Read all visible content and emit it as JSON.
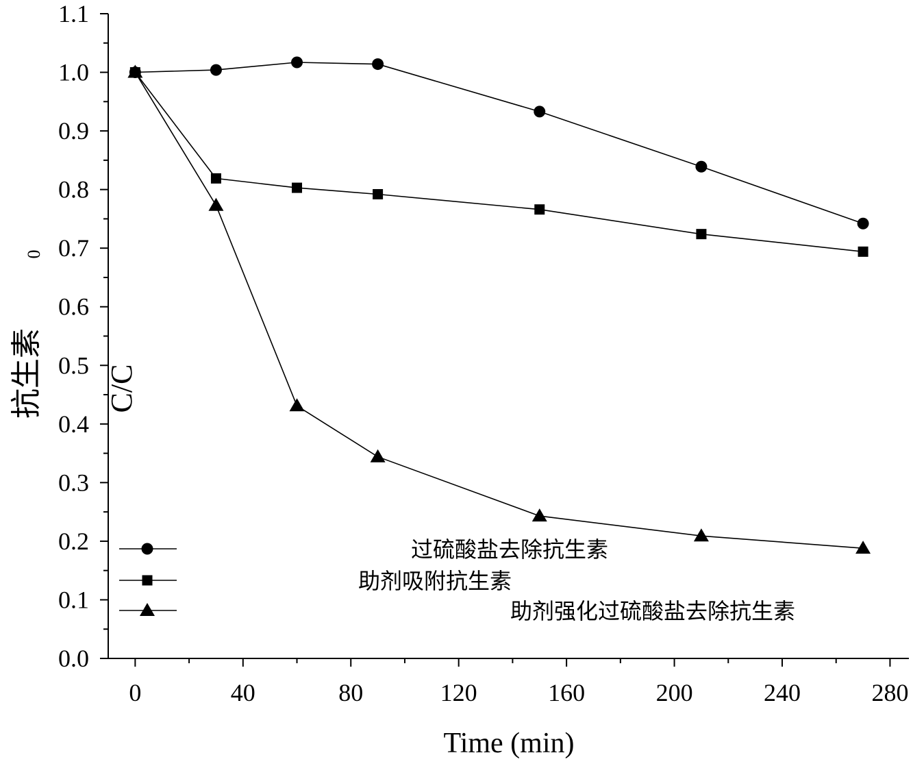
{
  "chart_data": {
    "type": "line",
    "xlabel": "Time (min)",
    "ylabel_cn": "抗生素",
    "ylabel_latin": "C/C",
    "ylabel_subscript": "0",
    "xlim": [
      -10,
      287
    ],
    "ylim": [
      0.0,
      1.1
    ],
    "x_ticks": [
      0,
      40,
      80,
      120,
      160,
      200,
      240,
      280
    ],
    "x_tick_labels": [
      "0",
      "40",
      "80",
      "120",
      "160",
      "200",
      "240",
      "280"
    ],
    "y_ticks": [
      0.0,
      0.1,
      0.2,
      0.3,
      0.4,
      0.5,
      0.6,
      0.7,
      0.8,
      0.9,
      1.0,
      1.1
    ],
    "y_tick_labels": [
      "0.0",
      "0.1",
      "0.2",
      "0.3",
      "0.4",
      "0.5",
      "0.6",
      "0.7",
      "0.8",
      "0.9",
      "1.0",
      "1.1"
    ],
    "grid": false,
    "legend_position": "bottom-left",
    "series": [
      {
        "name": "过硫酸盐去除抗生素",
        "marker": "circle",
        "color": "#000000",
        "x": [
          0,
          30,
          60,
          90,
          150,
          210,
          270
        ],
        "y": [
          1.0,
          1.004,
          1.017,
          1.014,
          0.933,
          0.839,
          0.742
        ]
      },
      {
        "name": "助剂吸附抗生素",
        "marker": "square",
        "color": "#000000",
        "x": [
          0,
          30,
          60,
          90,
          150,
          210,
          270
        ],
        "y": [
          1.0,
          0.819,
          0.803,
          0.792,
          0.766,
          0.724,
          0.694
        ]
      },
      {
        "name": "助剂强化过硫酸盐去除抗生素",
        "marker": "triangle",
        "color": "#000000",
        "x": [
          0,
          30,
          60,
          90,
          150,
          210,
          270
        ],
        "y": [
          1.0,
          0.773,
          0.431,
          0.344,
          0.243,
          0.209,
          0.188
        ]
      }
    ]
  }
}
